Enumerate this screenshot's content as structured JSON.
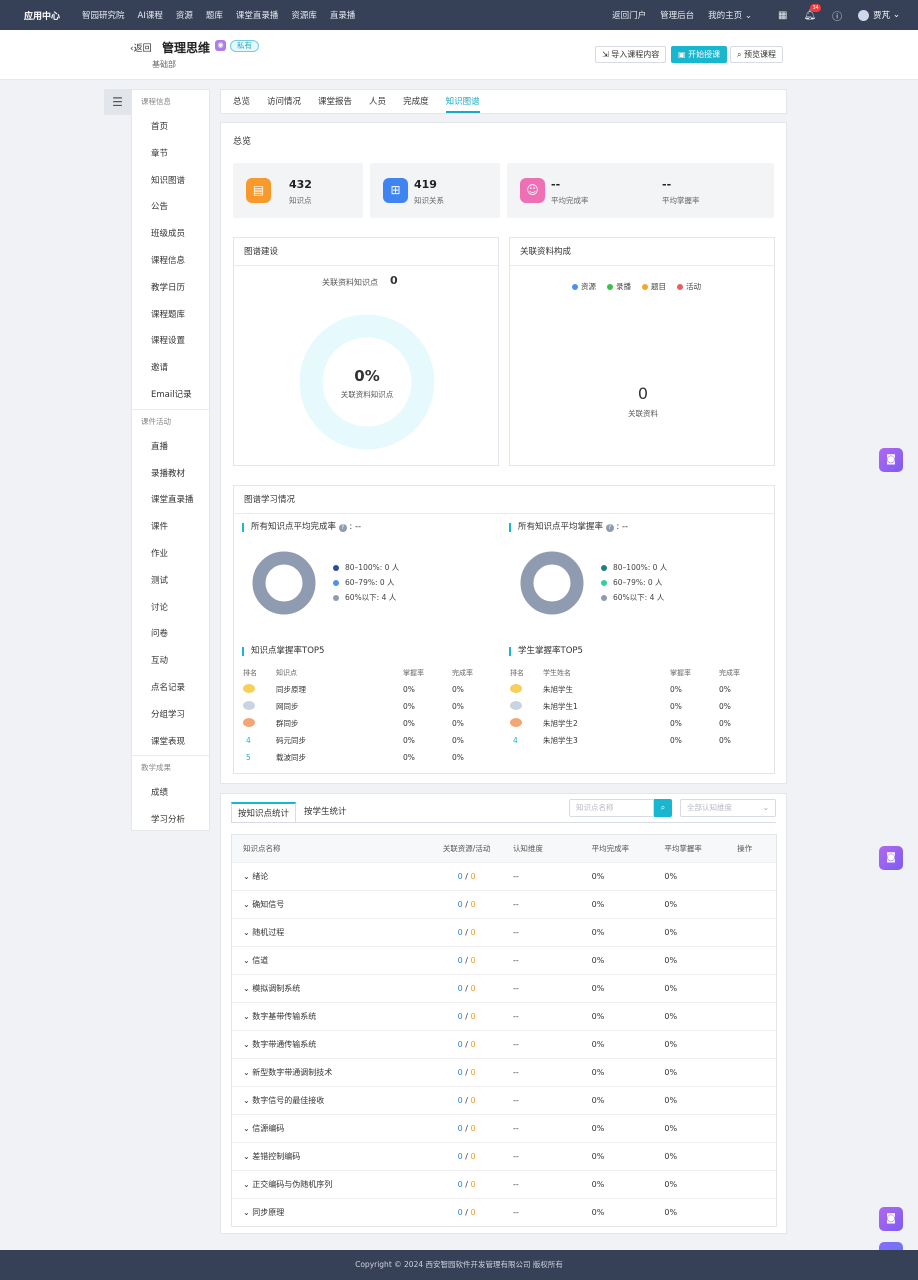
{
  "topbar": {
    "brand": "应用中心",
    "nav": [
      "智园研究院",
      "AI课程",
      "资源",
      "题库",
      "课堂直录播",
      "资源库",
      "直录播"
    ],
    "right_links": [
      "返回门户",
      "管理后台",
      "我的主页"
    ],
    "notification_count": "34",
    "user": "贾芃"
  },
  "header": {
    "back": "返回",
    "course_title": "管理思维",
    "private_tag": "私有",
    "department": "基础部",
    "btn_import": "导入课程内容",
    "btn_start": "开始授课",
    "btn_preview": "预览课程"
  },
  "sidebar": {
    "groups": [
      {
        "title": "课程信息",
        "items": [
          "首页",
          "章节",
          "知识图谱",
          "公告",
          "班级成员",
          "课程信息",
          "教学日历",
          "课程题库",
          "课程设置",
          "邀请",
          "Email记录"
        ]
      },
      {
        "title": "课件活动",
        "items": [
          "直播",
          "录播教材",
          "课堂直录播",
          "课件",
          "作业",
          "测试",
          "讨论",
          "问卷",
          "互动",
          "点名记录",
          "分组学习",
          "课堂表现"
        ]
      },
      {
        "title": "教学成果",
        "items": [
          "成绩",
          "学习分析"
        ]
      }
    ]
  },
  "tabs": [
    "总览",
    "访问情况",
    "课堂报告",
    "人员",
    "完成度",
    "知识图谱"
  ],
  "overview": {
    "title": "总览",
    "knowledge_points": {
      "value": "432",
      "label": "知识点"
    },
    "knowledge_relations": {
      "value": "419",
      "label": "知识关系"
    },
    "avg_completion": {
      "value": "--",
      "label": "平均完成率"
    },
    "avg_mastery": {
      "value": "--",
      "label": "平均掌握率"
    }
  },
  "graph_build": {
    "title": "图谱建设",
    "linked_label": "关联资料知识点",
    "linked_value": "0",
    "percent": "0%",
    "percent_label": "关联资料知识点",
    "percent_value": 0
  },
  "resource_comp": {
    "title": "关联资料构成",
    "legend": [
      "资源",
      "录播",
      "题目",
      "活动"
    ],
    "legend_colors": [
      "#4d8ff0",
      "#3cbf4b",
      "#f5a623",
      "#ee5d5d"
    ],
    "total": "0",
    "total_label": "关联资料"
  },
  "learning": {
    "title": "图谱学习情况",
    "completion_title": "所有知识点平均完成率",
    "completion_value": ": --",
    "mastery_title": "所有知识点平均掌握率",
    "mastery_value": ": --",
    "completion_legend": [
      "80–100%: 0 人",
      "60–79%: 0 人",
      "60%以下: 4 人"
    ],
    "mastery_legend": [
      "80–100%: 0 人",
      "60–79%: 0 人",
      "60%以下: 4 人"
    ],
    "completion_colors": [
      "#2a4da0",
      "#4f93e8",
      "#8e9bb0"
    ],
    "mastery_colors": [
      "#1d7f88",
      "#2fd0a0",
      "#8e9bb0"
    ],
    "kp_top_title": "知识点掌握率TOP5",
    "stu_top_title": "学生掌握率TOP5",
    "kp_headers": [
      "排名",
      "知识点",
      "掌握率",
      "完成率"
    ],
    "stu_headers": [
      "排名",
      "学生姓名",
      "掌握率",
      "完成率"
    ],
    "kp_rows": [
      {
        "rank": "",
        "name": "同步原理",
        "mastery": "0%",
        "completion": "0%"
      },
      {
        "rank": "",
        "name": "网同步",
        "mastery": "0%",
        "completion": "0%"
      },
      {
        "rank": "",
        "name": "群同步",
        "mastery": "0%",
        "completion": "0%"
      },
      {
        "rank": "4",
        "name": "码元同步",
        "mastery": "0%",
        "completion": "0%"
      },
      {
        "rank": "5",
        "name": "载波同步",
        "mastery": "0%",
        "completion": "0%"
      }
    ],
    "stu_rows": [
      {
        "rank": "",
        "name": "朱旭学生",
        "mastery": "0%",
        "completion": "0%"
      },
      {
        "rank": "",
        "name": "朱旭学生1",
        "mastery": "0%",
        "completion": "0%"
      },
      {
        "rank": "",
        "name": "朱旭学生2",
        "mastery": "0%",
        "completion": "0%"
      },
      {
        "rank": "4",
        "name": "朱旭学生3",
        "mastery": "0%",
        "completion": "0%"
      }
    ]
  },
  "stats": {
    "tab_kp": "按知识点统计",
    "tab_stu": "按学生统计",
    "search_placeholder": "知识点名称",
    "select_placeholder": "全部认知维度",
    "headers": [
      "知识点名称",
      "关联资源/活动",
      "认知维度",
      "平均完成率",
      "平均掌握率",
      "操作"
    ],
    "rows": [
      {
        "name": "绪论",
        "res": "0",
        "act": "0",
        "dim": "--",
        "comp": "0%",
        "mast": "0%"
      },
      {
        "name": "确知信号",
        "res": "0",
        "act": "0",
        "dim": "--",
        "comp": "0%",
        "mast": "0%"
      },
      {
        "name": "随机过程",
        "res": "0",
        "act": "0",
        "dim": "--",
        "comp": "0%",
        "mast": "0%"
      },
      {
        "name": "信道",
        "res": "0",
        "act": "0",
        "dim": "--",
        "comp": "0%",
        "mast": "0%"
      },
      {
        "name": "模拟调制系统",
        "res": "0",
        "act": "0",
        "dim": "--",
        "comp": "0%",
        "mast": "0%"
      },
      {
        "name": "数字基带传输系统",
        "res": "0",
        "act": "0",
        "dim": "--",
        "comp": "0%",
        "mast": "0%"
      },
      {
        "name": "数字带通传输系统",
        "res": "0",
        "act": "0",
        "dim": "--",
        "comp": "0%",
        "mast": "0%"
      },
      {
        "name": "新型数字带通调制技术",
        "res": "0",
        "act": "0",
        "dim": "--",
        "comp": "0%",
        "mast": "0%"
      },
      {
        "name": "数字信号的最佳接收",
        "res": "0",
        "act": "0",
        "dim": "--",
        "comp": "0%",
        "mast": "0%"
      },
      {
        "name": "信源编码",
        "res": "0",
        "act": "0",
        "dim": "--",
        "comp": "0%",
        "mast": "0%"
      },
      {
        "name": "差错控制编码",
        "res": "0",
        "act": "0",
        "dim": "--",
        "comp": "0%",
        "mast": "0%"
      },
      {
        "name": "正交编码与伪随机序列",
        "res": "0",
        "act": "0",
        "dim": "--",
        "comp": "0%",
        "mast": "0%"
      },
      {
        "name": "同步原理",
        "res": "0",
        "act": "0",
        "dim": "--",
        "comp": "0%",
        "mast": "0%"
      }
    ]
  },
  "footer": "Copyright © 2024 西安智园软件开发管理有限公司 版权所有",
  "float": {
    "aippt": "AIPPT"
  },
  "colors": {
    "accent": "#19b6cf",
    "topbar": "#364057",
    "donut_ring": "#e6fafd",
    "donut_gray": "#8e9bb0"
  }
}
